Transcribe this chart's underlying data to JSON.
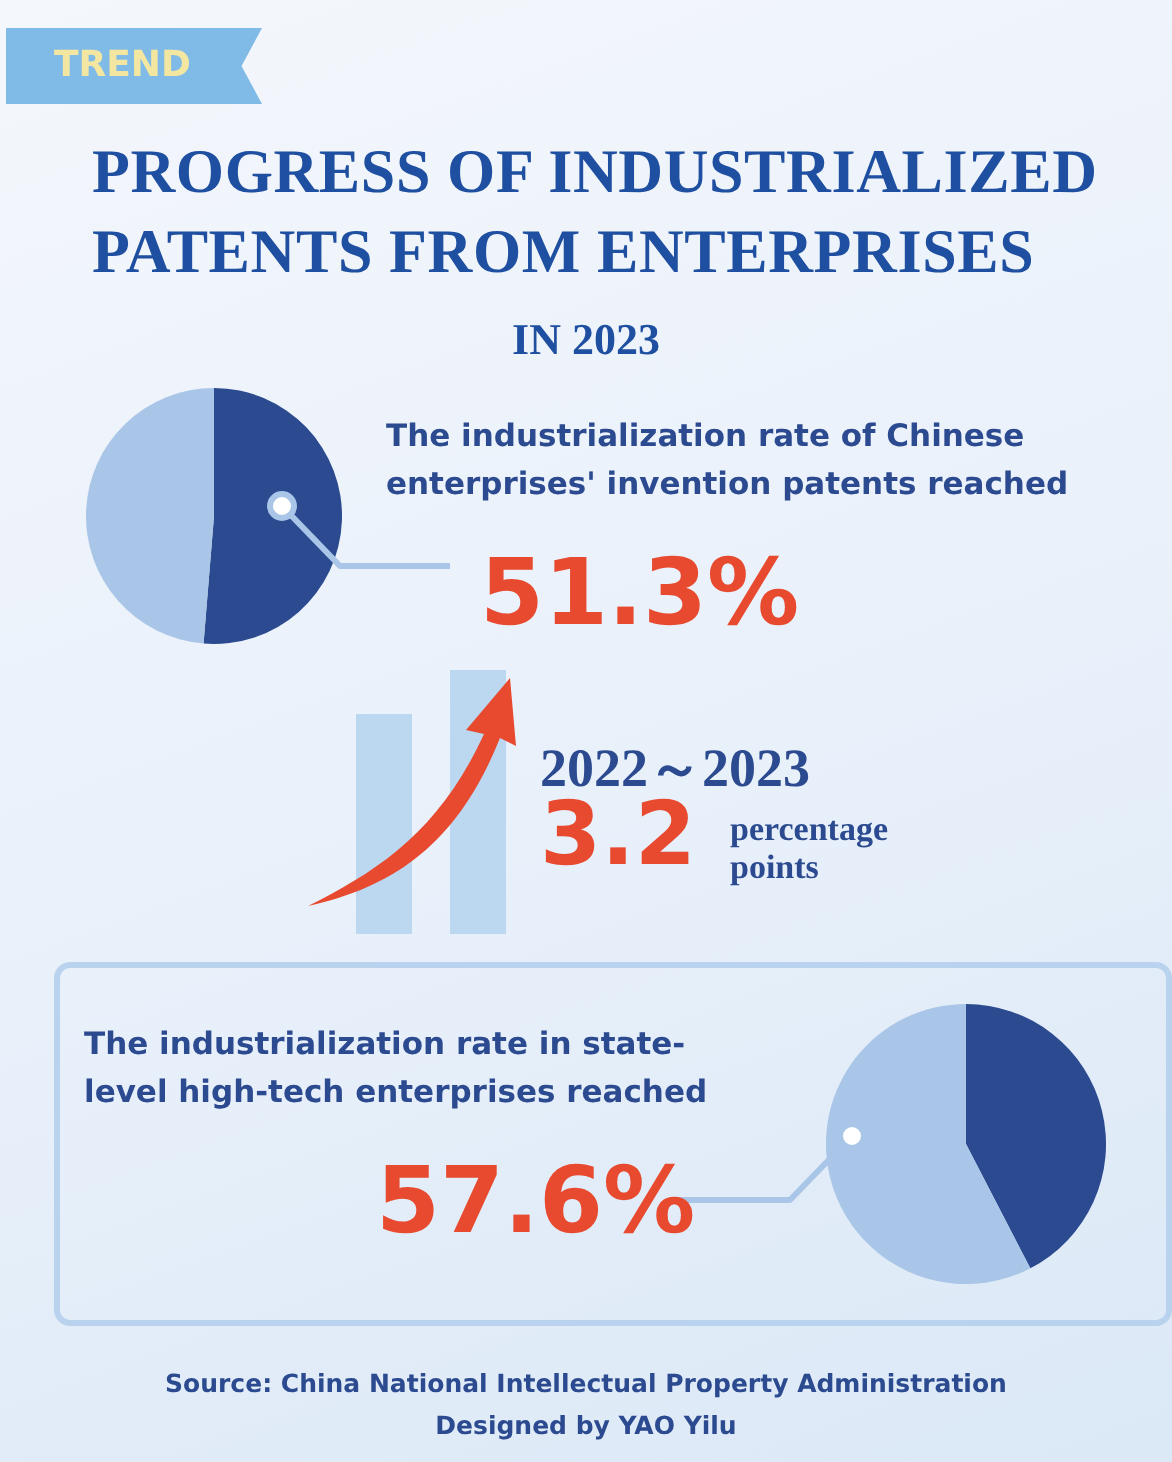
{
  "chart_data": [
    {
      "type": "pie",
      "title": "PROGRESS OF INDUSTRIALIZED PATENTS FROM ENTERPRISES",
      "subtitle": "IN 2023",
      "categories": [
        null,
        null
      ],
      "values": [
        51.3,
        48.7
      ],
      "colors": [
        "#2b4a8f",
        "#a9c5e7"
      ],
      "value_labels": [
        "51.3%",
        null
      ],
      "legend": false,
      "annotations": [
        "TREND",
        "The industrialization rate of Chinese enterprises' invention patents reached",
        "2022～2023",
        "3.2",
        "percentage points"
      ]
    },
    {
      "type": "pie",
      "categories": [
        null,
        null
      ],
      "values": [
        42.4,
        57.6
      ],
      "colors": [
        "#2b4a8f",
        "#a9c5e7"
      ],
      "value_labels": [
        null,
        "57.6%"
      ],
      "legend": false,
      "annotations": [
        "The industrialization rate in state-level high-tech enterprises reached",
        "Source: China National Intellectual Property Administration",
        "Designed by YAO Yilu"
      ]
    }
  ]
}
